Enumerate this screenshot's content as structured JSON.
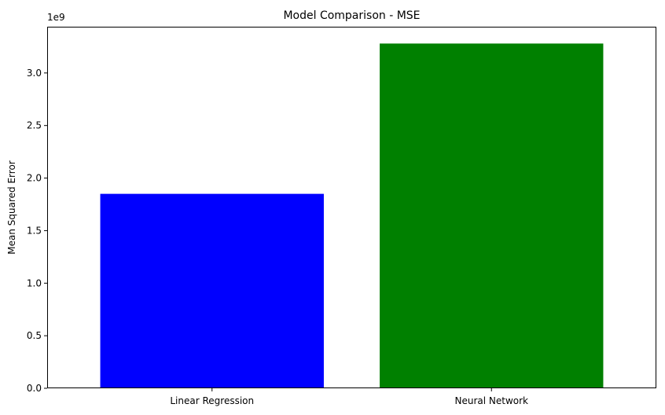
{
  "chart_data": {
    "type": "bar",
    "title": "Model Comparison - MSE",
    "xlabel": "",
    "ylabel": "Mean Squared Error",
    "categories": [
      "Linear Regression",
      "Neural Network"
    ],
    "values": [
      1850000000,
      3280000000
    ],
    "colors": [
      "#0000ff",
      "#008000"
    ],
    "ylim": [
      0,
      3440000000
    ],
    "y_ticks": [
      0,
      0.5,
      1.0,
      1.5,
      2.0,
      2.5,
      3.0
    ],
    "y_tick_labels": [
      "0.0",
      "0.5",
      "1.0",
      "1.5",
      "2.0",
      "2.5",
      "3.0"
    ],
    "y_offset_label": "1e9",
    "grid": false,
    "legend": "none"
  }
}
